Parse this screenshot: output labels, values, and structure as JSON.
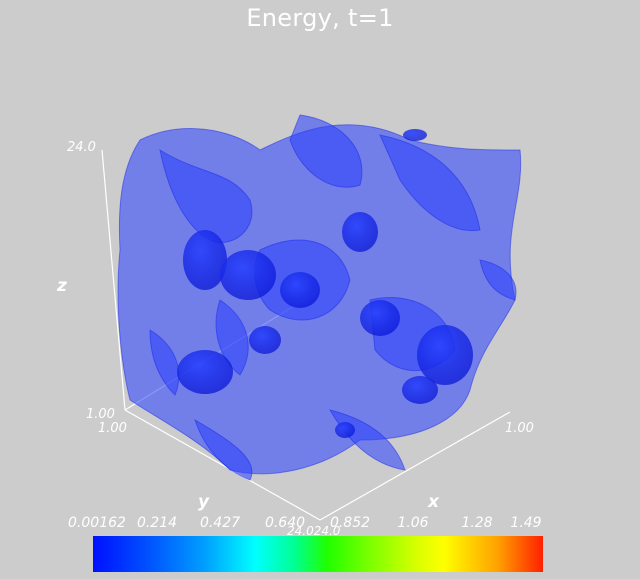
{
  "title": "Energy, t=1",
  "axes": {
    "z_label": "z",
    "x_label": "x",
    "y_label": "y",
    "z_max": "24.0",
    "z_min": "1.00",
    "y_near": "1.00",
    "x_far": "1.00",
    "origin_pair": "24.024.0"
  },
  "colorbar": {
    "labels": [
      "0.00162",
      "0.214",
      "0.427",
      "0.640",
      "0.852",
      "1.06",
      "1.28",
      "1.49"
    ],
    "colors": [
      "#0010ff",
      "#00ffff",
      "#20ff00",
      "#ffff00",
      "#ff2000"
    ]
  },
  "isosurface_color": "#2030ff",
  "background_color": "#cccccc"
}
